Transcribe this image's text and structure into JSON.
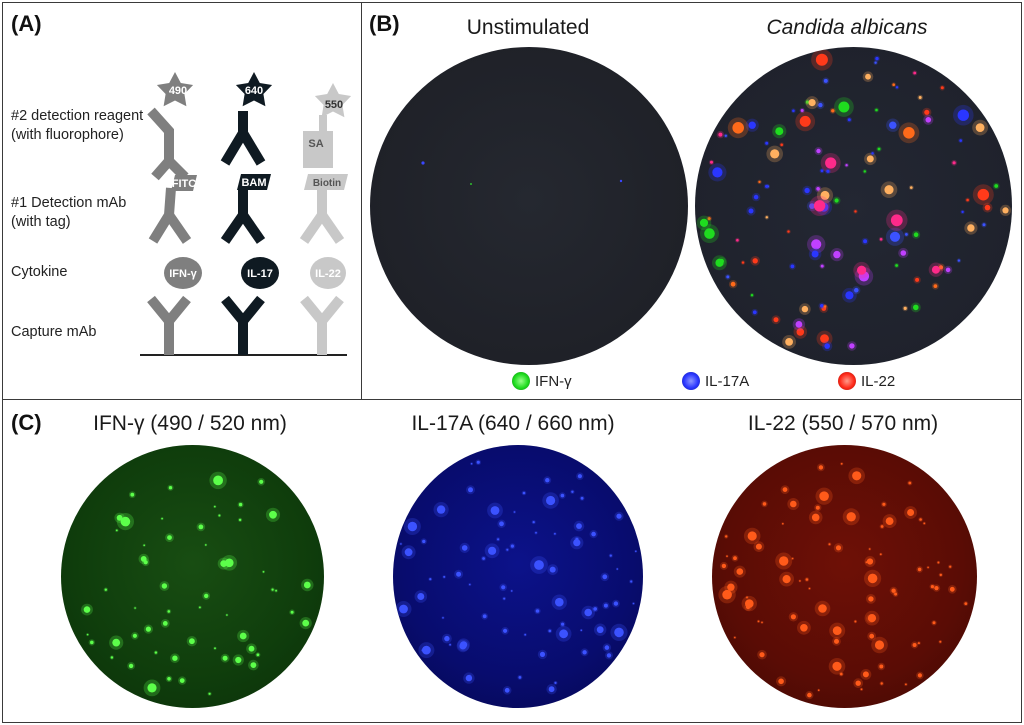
{
  "panel_a": {
    "label": "(A)",
    "rows": {
      "detection_reagent": [
        "#2 detection reagent",
        "(with fluorophore)"
      ],
      "detection_mab": [
        "#1 Detection mAb",
        "(with tag)"
      ],
      "cytokine": "Cytokine",
      "capture_mab": "Capture mAb"
    },
    "columns": [
      {
        "fluorophore": "490",
        "tag": "FITC",
        "cytokine": "IFN-γ",
        "color": "#7f7f7f"
      },
      {
        "fluorophore": "640",
        "tag": "BAM",
        "cytokine": "IL-17",
        "color": "#0f1a22"
      },
      {
        "fluorophore": "550",
        "tag": "Biotin",
        "cytokine": "IL-22",
        "color": "#c8c8c8",
        "linker": "SA"
      }
    ]
  },
  "panel_b": {
    "label": "(B)",
    "wells": [
      {
        "title": "Unstimulated",
        "italic": false
      },
      {
        "title": "Candida albicans",
        "italic": true
      }
    ],
    "legend": [
      {
        "label": "IFN-γ",
        "color": "#1fdc1f"
      },
      {
        "label": "IL-17A",
        "color": "#2a36ff"
      },
      {
        "label": "IL-22",
        "color": "#ff2a1a"
      }
    ]
  },
  "panel_c": {
    "label": "(C)",
    "channels": [
      {
        "title": "IFN-γ (490 / 520 nm)",
        "bg": "#0f3d0c",
        "spot": "#5cff4a"
      },
      {
        "title": "IL-17A (640 / 660 nm)",
        "bg": "#080c6e",
        "spot": "#3b52ff"
      },
      {
        "title": "IL-22 (550 / 570 nm)",
        "bg": "#5a0c05",
        "spot": "#ff5a1a"
      }
    ]
  }
}
